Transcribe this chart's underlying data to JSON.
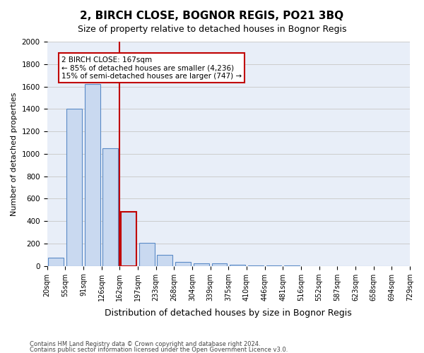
{
  "title": "2, BIRCH CLOSE, BOGNOR REGIS, PO21 3BQ",
  "subtitle": "Size of property relative to detached houses in Bognor Regis",
  "xlabel": "Distribution of detached houses by size in Bognor Regis",
  "ylabel": "Number of detached properties",
  "footer1": "Contains HM Land Registry data © Crown copyright and database right 2024.",
  "footer2": "Contains public sector information licensed under the Open Government Licence v3.0.",
  "bin_labels": [
    "20sqm",
    "55sqm",
    "91sqm",
    "126sqm",
    "162sqm",
    "197sqm",
    "233sqm",
    "268sqm",
    "304sqm",
    "339sqm",
    "375sqm",
    "410sqm",
    "446sqm",
    "481sqm",
    "516sqm",
    "552sqm",
    "587sqm",
    "623sqm",
    "658sqm",
    "694sqm",
    "729sqm"
  ],
  "bar_values": [
    75,
    1400,
    1620,
    1050,
    480,
    205,
    100,
    38,
    25,
    20,
    10,
    5,
    3,
    2,
    1,
    1,
    1,
    0,
    0,
    0
  ],
  "highlight_index": 4,
  "bar_color": "#c9d9f0",
  "bar_edge_color": "#5a8ac6",
  "highlight_bar_edge_color": "#c00000",
  "property_label": "2 BIRCH CLOSE: 167sqm",
  "pct_smaller": 85,
  "count_smaller": 4236,
  "pct_larger_semi": 15,
  "count_larger_semi": 747,
  "annotation_box_edge_color": "#c00000",
  "ylim": [
    0,
    2000
  ],
  "yticks": [
    0,
    200,
    400,
    600,
    800,
    1000,
    1200,
    1400,
    1600,
    1800,
    2000
  ],
  "grid_color": "#cccccc",
  "bg_color": "#e8eef8",
  "title_fontsize": 11,
  "subtitle_fontsize": 9,
  "ylabel_fontsize": 8,
  "xlabel_fontsize": 9
}
